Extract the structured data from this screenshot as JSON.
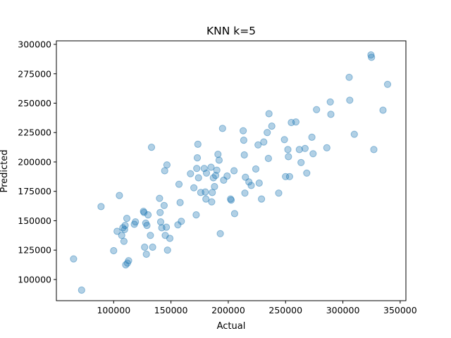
{
  "chart_data": {
    "type": "scatter",
    "title": "KNN k=5",
    "xlabel": "Actual",
    "ylabel": "Predicted",
    "xlim": [
      50000,
      355000
    ],
    "ylim": [
      82000,
      303000
    ],
    "xticks": [
      100000,
      150000,
      200000,
      250000,
      300000,
      350000
    ],
    "yticks": [
      100000,
      125000,
      150000,
      175000,
      200000,
      225000,
      250000,
      275000,
      300000
    ],
    "grid": false,
    "marker_color": "#1f77b4",
    "marker_alpha": 0.35,
    "points": [
      {
        "x": 65000,
        "y": 117500
      },
      {
        "x": 72000,
        "y": 91000
      },
      {
        "x": 89000,
        "y": 162000
      },
      {
        "x": 100000,
        "y": 124500
      },
      {
        "x": 103000,
        "y": 141000
      },
      {
        "x": 105000,
        "y": 171500
      },
      {
        "x": 107000,
        "y": 137500
      },
      {
        "x": 108000,
        "y": 144000
      },
      {
        "x": 109000,
        "y": 132500
      },
      {
        "x": 109500,
        "y": 142500
      },
      {
        "x": 110000,
        "y": 146000
      },
      {
        "x": 110500,
        "y": 112500
      },
      {
        "x": 111500,
        "y": 152000
      },
      {
        "x": 112000,
        "y": 114000
      },
      {
        "x": 113000,
        "y": 116000
      },
      {
        "x": 118000,
        "y": 147000
      },
      {
        "x": 119000,
        "y": 149000
      },
      {
        "x": 126000,
        "y": 158000
      },
      {
        "x": 126500,
        "y": 157000
      },
      {
        "x": 127000,
        "y": 127500
      },
      {
        "x": 128000,
        "y": 148000
      },
      {
        "x": 128500,
        "y": 121500
      },
      {
        "x": 129000,
        "y": 146000
      },
      {
        "x": 130000,
        "y": 155000
      },
      {
        "x": 132000,
        "y": 137500
      },
      {
        "x": 133000,
        "y": 212500
      },
      {
        "x": 134000,
        "y": 127500
      },
      {
        "x": 140000,
        "y": 169000
      },
      {
        "x": 140500,
        "y": 157000
      },
      {
        "x": 141000,
        "y": 149000
      },
      {
        "x": 142000,
        "y": 144000
      },
      {
        "x": 144000,
        "y": 163000
      },
      {
        "x": 144500,
        "y": 192500
      },
      {
        "x": 145000,
        "y": 137500
      },
      {
        "x": 146000,
        "y": 144500
      },
      {
        "x": 146500,
        "y": 197500
      },
      {
        "x": 147000,
        "y": 125000
      },
      {
        "x": 149000,
        "y": 135000
      },
      {
        "x": 156000,
        "y": 146500
      },
      {
        "x": 157000,
        "y": 181000
      },
      {
        "x": 158000,
        "y": 165500
      },
      {
        "x": 159000,
        "y": 149500
      },
      {
        "x": 167000,
        "y": 190000
      },
      {
        "x": 170000,
        "y": 178000
      },
      {
        "x": 172000,
        "y": 155000
      },
      {
        "x": 172500,
        "y": 194500
      },
      {
        "x": 173000,
        "y": 203500
      },
      {
        "x": 173500,
        "y": 215000
      },
      {
        "x": 174000,
        "y": 186500
      },
      {
        "x": 176000,
        "y": 174000
      },
      {
        "x": 179000,
        "y": 194500
      },
      {
        "x": 180000,
        "y": 174500
      },
      {
        "x": 180500,
        "y": 168500
      },
      {
        "x": 181000,
        "y": 190500
      },
      {
        "x": 185000,
        "y": 195500
      },
      {
        "x": 185500,
        "y": 166000
      },
      {
        "x": 186000,
        "y": 174000
      },
      {
        "x": 187000,
        "y": 186500
      },
      {
        "x": 188000,
        "y": 179000
      },
      {
        "x": 189000,
        "y": 188500
      },
      {
        "x": 190000,
        "y": 193000
      },
      {
        "x": 191000,
        "y": 206500
      },
      {
        "x": 192000,
        "y": 201500
      },
      {
        "x": 193000,
        "y": 139000
      },
      {
        "x": 195000,
        "y": 228500
      },
      {
        "x": 196000,
        "y": 184500
      },
      {
        "x": 199000,
        "y": 188000
      },
      {
        "x": 202000,
        "y": 168500
      },
      {
        "x": 202500,
        "y": 167500
      },
      {
        "x": 205000,
        "y": 192500
      },
      {
        "x": 205500,
        "y": 156000
      },
      {
        "x": 213000,
        "y": 226500
      },
      {
        "x": 213500,
        "y": 218500
      },
      {
        "x": 214000,
        "y": 206000
      },
      {
        "x": 214500,
        "y": 173500
      },
      {
        "x": 215000,
        "y": 187000
      },
      {
        "x": 218000,
        "y": 183000
      },
      {
        "x": 220000,
        "y": 180000
      },
      {
        "x": 224000,
        "y": 194000
      },
      {
        "x": 226000,
        "y": 214500
      },
      {
        "x": 227000,
        "y": 182000
      },
      {
        "x": 229000,
        "y": 168500
      },
      {
        "x": 231000,
        "y": 217000
      },
      {
        "x": 234000,
        "y": 225000
      },
      {
        "x": 235000,
        "y": 203000
      },
      {
        "x": 235500,
        "y": 241000
      },
      {
        "x": 238000,
        "y": 230500
      },
      {
        "x": 244000,
        "y": 173500
      },
      {
        "x": 249000,
        "y": 219000
      },
      {
        "x": 250000,
        "y": 187500
      },
      {
        "x": 252000,
        "y": 210500
      },
      {
        "x": 252500,
        "y": 204500
      },
      {
        "x": 253500,
        "y": 187500
      },
      {
        "x": 255000,
        "y": 233500
      },
      {
        "x": 259000,
        "y": 234000
      },
      {
        "x": 262000,
        "y": 210500
      },
      {
        "x": 263500,
        "y": 199500
      },
      {
        "x": 267000,
        "y": 211500
      },
      {
        "x": 268500,
        "y": 190500
      },
      {
        "x": 273000,
        "y": 221000
      },
      {
        "x": 274000,
        "y": 207000
      },
      {
        "x": 277000,
        "y": 244500
      },
      {
        "x": 286000,
        "y": 212000
      },
      {
        "x": 289000,
        "y": 251000
      },
      {
        "x": 289500,
        "y": 240500
      },
      {
        "x": 305500,
        "y": 272000
      },
      {
        "x": 306000,
        "y": 252500
      },
      {
        "x": 310000,
        "y": 223500
      },
      {
        "x": 324500,
        "y": 291000
      },
      {
        "x": 325000,
        "y": 289000
      },
      {
        "x": 327000,
        "y": 210500
      },
      {
        "x": 335000,
        "y": 244000
      },
      {
        "x": 339000,
        "y": 266000
      }
    ]
  }
}
